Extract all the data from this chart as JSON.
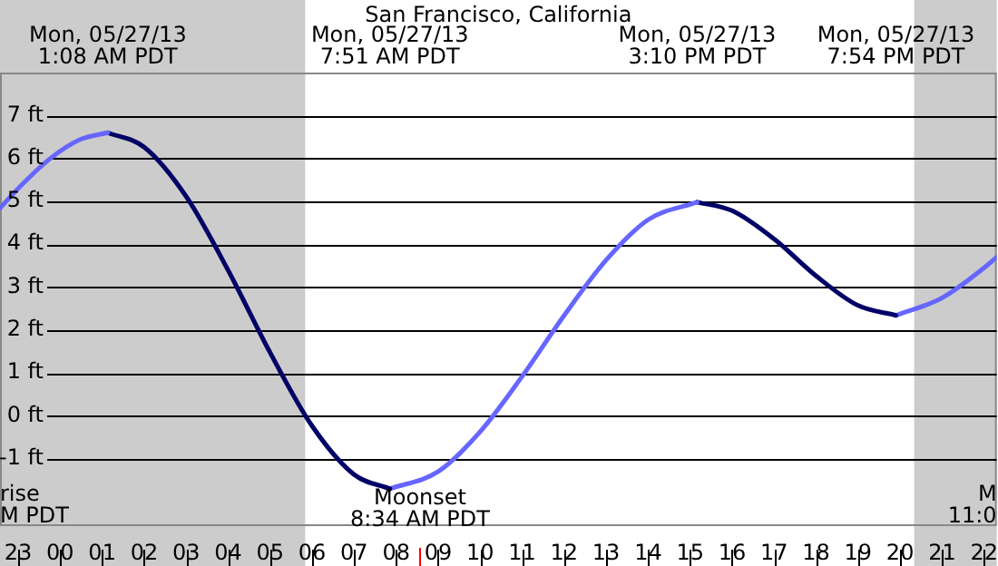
{
  "chart_data": {
    "type": "line",
    "title": "San Francisco, California",
    "xlim": [
      "--05-26T22:34",
      "--05-27T22:18"
    ],
    "ylim": [
      -2.57,
      8.0
    ],
    "xticks": [
      {
        "value": "--05-26T23:00",
        "label": "23"
      },
      {
        "value": "--05-27T00:00",
        "label": "00"
      },
      {
        "value": "--05-27T01:00",
        "label": "01"
      },
      {
        "value": "--05-27T02:00",
        "label": "02"
      },
      {
        "value": "--05-27T03:00",
        "label": "03"
      },
      {
        "value": "--05-27T04:00",
        "label": "04"
      },
      {
        "value": "--05-27T05:00",
        "label": "05"
      },
      {
        "value": "--05-27T06:00",
        "label": "06"
      },
      {
        "value": "--05-27T07:00",
        "label": "07"
      },
      {
        "value": "--05-27T08:00",
        "label": "08"
      },
      {
        "value": "--05-27T09:00",
        "label": "09"
      },
      {
        "value": "--05-27T10:00",
        "label": "10"
      },
      {
        "value": "--05-27T11:00",
        "label": "11"
      },
      {
        "value": "--05-27T12:00",
        "label": "12"
      },
      {
        "value": "--05-27T13:00",
        "label": "13"
      },
      {
        "value": "--05-27T14:00",
        "label": "14"
      },
      {
        "value": "--05-27T15:00",
        "label": "15"
      },
      {
        "value": "--05-27T16:00",
        "label": "16"
      },
      {
        "value": "--05-27T17:00",
        "label": "17"
      },
      {
        "value": "--05-27T18:00",
        "label": "18"
      },
      {
        "value": "--05-27T19:00",
        "label": "19"
      },
      {
        "value": "--05-27T20:00",
        "label": "20"
      },
      {
        "value": "--05-27T21:00",
        "label": "21"
      },
      {
        "value": "--05-27T22:00",
        "label": "22"
      }
    ],
    "yticks": [
      {
        "value": -1,
        "label": "-1 ft"
      },
      {
        "value": 0,
        "label": "0 ft"
      },
      {
        "value": 1,
        "label": "1 ft"
      },
      {
        "value": 2,
        "label": "2 ft"
      },
      {
        "value": 3,
        "label": "3 ft"
      },
      {
        "value": 4,
        "label": "4 ft"
      },
      {
        "value": 5,
        "label": "5 ft"
      },
      {
        "value": 6,
        "label": "6 ft"
      },
      {
        "value": 7,
        "label": "7 ft"
      }
    ],
    "grid": "y",
    "marker": "none",
    "line_style": "solid",
    "series": [
      {
        "color": "#6666ff",
        "x": [
          "--05-26T22:34",
          "--05-26T23:00",
          "--05-26T23:46",
          "--05-27T00:30",
          "--05-27T01:08"
        ],
        "values": [
          4.84,
          5.3,
          6.0,
          6.45,
          6.6
        ]
      },
      {
        "color": "#000066",
        "x": [
          "--05-27T01:08",
          "--05-27T02:00",
          "--05-27T03:00",
          "--05-27T04:00",
          "--05-27T05:00",
          "--05-27T06:00",
          "--05-27T07:00",
          "--05-27T07:51"
        ],
        "values": [
          6.6,
          6.26,
          5.11,
          3.39,
          1.47,
          -0.24,
          -1.37,
          -1.7
        ]
      },
      {
        "color": "#6666ff",
        "x": [
          "--05-27T07:51",
          "--05-27T09:00",
          "--05-27T10:00",
          "--05-27T11:00",
          "--05-27T12:00",
          "--05-27T13:00",
          "--05-27T14:00",
          "--05-27T15:10"
        ],
        "values": [
          -1.7,
          -1.3,
          -0.37,
          0.92,
          2.34,
          3.63,
          4.57,
          4.98
        ]
      },
      {
        "color": "#000066",
        "x": [
          "--05-27T15:10",
          "--05-27T16:00",
          "--05-27T17:00",
          "--05-27T18:00",
          "--05-27T19:00",
          "--05-27T19:54"
        ],
        "values": [
          4.98,
          4.78,
          4.12,
          3.26,
          2.57,
          2.34
        ]
      },
      {
        "color": "#6666ff",
        "x": [
          "--05-27T19:54",
          "--05-27T21:00",
          "--05-27T22:00",
          "--05-27T22:18"
        ],
        "values": [
          2.34,
          2.75,
          3.45,
          3.7
        ]
      }
    ],
    "bands": [
      {
        "axis": "x",
        "from": "--05-26T22:34",
        "to": "--05-27T05:50",
        "color": "#cccccc"
      },
      {
        "axis": "x",
        "from": "--05-27T20:20",
        "to": "--05-27T22:18",
        "color": "#cccccc"
      }
    ],
    "ref_lines": [
      {
        "axis": "x",
        "value": "--05-27T08:34",
        "label": "Moonset\n8:34 AM PDT",
        "color": "#ff0000"
      }
    ],
    "annotations": [
      "Mon, 05/27/13\n1:08 AM PDT",
      "Mon, 05/27/13\n7:51 AM PDT",
      "Mon, 05/27/13\n3:10 PM PDT",
      "Mon, 05/27/13\n7:54 PM PDT",
      "rise\nM PDT",
      "M\n11:0"
    ]
  }
}
